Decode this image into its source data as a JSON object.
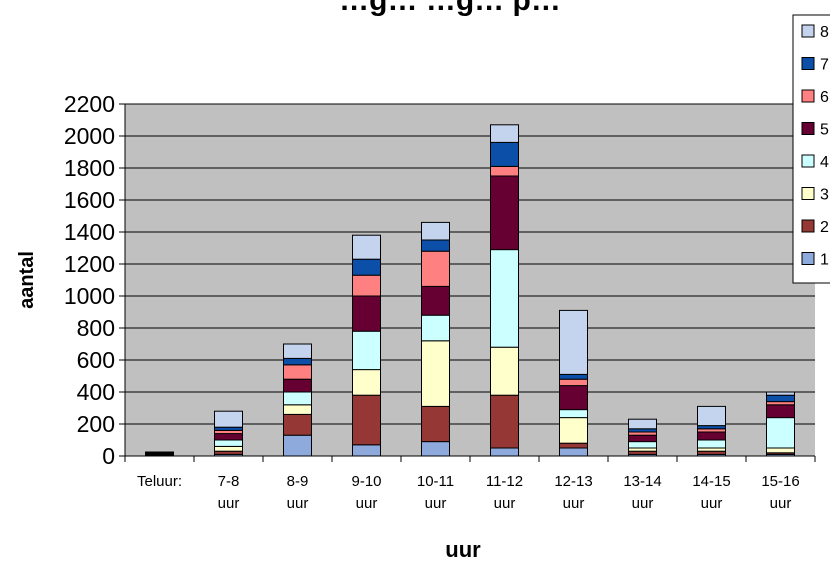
{
  "chart_data": {
    "type": "bar",
    "stacked": true,
    "title": "…g… …g… p…",
    "xlabel": "uur",
    "ylabel": "aantal",
    "ylim": [
      0,
      2200
    ],
    "yticks": [
      0,
      200,
      400,
      600,
      800,
      1000,
      1200,
      1400,
      1600,
      1800,
      2000,
      2200
    ],
    "grid": true,
    "legend_position": "right",
    "categories": [
      [
        "Teluur:",
        ""
      ],
      [
        "7-8",
        "uur"
      ],
      [
        "8-9",
        "uur"
      ],
      [
        "9-10",
        "uur"
      ],
      [
        "10-11",
        "uur"
      ],
      [
        "11-12",
        "uur"
      ],
      [
        "12-13",
        "uur"
      ],
      [
        "13-14",
        "uur"
      ],
      [
        "14-15",
        "uur"
      ],
      [
        "15-16",
        "uur"
      ]
    ],
    "series": [
      {
        "name": "1",
        "color": "#8EA9DB",
        "values": [
          5,
          10,
          130,
          70,
          90,
          50,
          50,
          10,
          10,
          10
        ]
      },
      {
        "name": "2",
        "color": "#953735",
        "values": [
          5,
          20,
          130,
          310,
          220,
          330,
          30,
          20,
          20,
          10
        ]
      },
      {
        "name": "3",
        "color": "#FFFFCC",
        "values": [
          5,
          30,
          60,
          160,
          410,
          300,
          160,
          20,
          20,
          30
        ]
      },
      {
        "name": "4",
        "color": "#CCFFFF",
        "values": [
          5,
          40,
          80,
          240,
          160,
          610,
          50,
          40,
          50,
          190
        ]
      },
      {
        "name": "5",
        "color": "#660033",
        "values": [
          5,
          40,
          80,
          220,
          180,
          460,
          150,
          40,
          50,
          80
        ]
      },
      {
        "name": "6",
        "color": "#FF8080",
        "values": [
          0,
          20,
          90,
          130,
          220,
          60,
          40,
          20,
          20,
          20
        ]
      },
      {
        "name": "7",
        "color": "#0B4FA8",
        "values": [
          0,
          20,
          40,
          100,
          70,
          150,
          30,
          20,
          20,
          40
        ]
      },
      {
        "name": "8",
        "color": "#C5D4EE",
        "values": [
          0,
          100,
          90,
          150,
          110,
          110,
          400,
          60,
          120,
          20
        ]
      }
    ]
  }
}
